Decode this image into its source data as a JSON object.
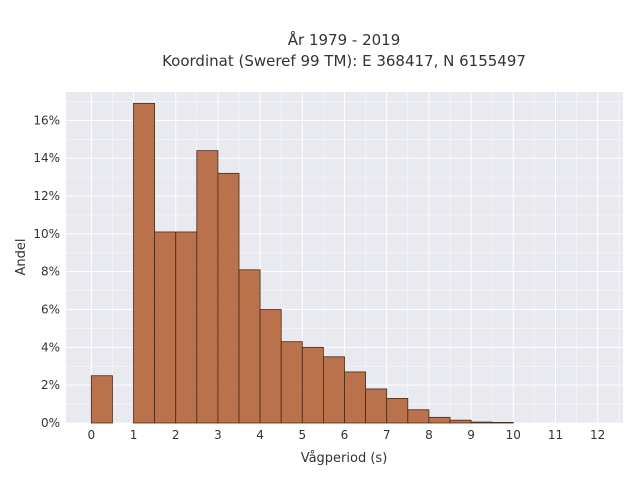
{
  "chart_data": {
    "type": "bar",
    "title": [
      "År 1979 - 2019",
      "Koordinat (Sweref 99 TM): E 368417, N 6155497"
    ],
    "xlabel": "Vågperiod (s)",
    "ylabel": "Andel",
    "xlim": [
      -0.6,
      12.6
    ],
    "ylim": [
      0,
      0.175
    ],
    "x_ticks": [
      0,
      1,
      2,
      3,
      4,
      5,
      6,
      7,
      8,
      9,
      10,
      11,
      12
    ],
    "x_tick_labels": [
      "0",
      "1",
      "2",
      "3",
      "4",
      "5",
      "6",
      "7",
      "8",
      "9",
      "10",
      "11",
      "12"
    ],
    "y_ticks": [
      0,
      0.02,
      0.04,
      0.06,
      0.08,
      0.1,
      0.12,
      0.14,
      0.16
    ],
    "y_tick_labels": [
      "0%",
      "2%",
      "4%",
      "6%",
      "8%",
      "10%",
      "12%",
      "14%",
      "16%"
    ],
    "bin_width": 0.5,
    "bars": [
      {
        "x_start": 0.0,
        "value": 0.025
      },
      {
        "x_start": 1.0,
        "value": 0.169
      },
      {
        "x_start": 1.5,
        "value": 0.101
      },
      {
        "x_start": 2.0,
        "value": 0.101
      },
      {
        "x_start": 2.5,
        "value": 0.144
      },
      {
        "x_start": 3.0,
        "value": 0.132
      },
      {
        "x_start": 3.5,
        "value": 0.081
      },
      {
        "x_start": 4.0,
        "value": 0.06
      },
      {
        "x_start": 4.5,
        "value": 0.043
      },
      {
        "x_start": 5.0,
        "value": 0.04
      },
      {
        "x_start": 5.5,
        "value": 0.035
      },
      {
        "x_start": 6.0,
        "value": 0.027
      },
      {
        "x_start": 6.5,
        "value": 0.018
      },
      {
        "x_start": 7.0,
        "value": 0.013
      },
      {
        "x_start": 7.5,
        "value": 0.007
      },
      {
        "x_start": 8.0,
        "value": 0.003
      },
      {
        "x_start": 8.5,
        "value": 0.0015
      },
      {
        "x_start": 9.0,
        "value": 0.0005
      },
      {
        "x_start": 9.5,
        "value": 0.0003
      }
    ],
    "grid": true,
    "colors": {
      "bar_fill": "#b5653a",
      "bar_stroke": "#4a2a18",
      "plot_background": "#e9e9f0",
      "grid": "#ffffff"
    }
  }
}
